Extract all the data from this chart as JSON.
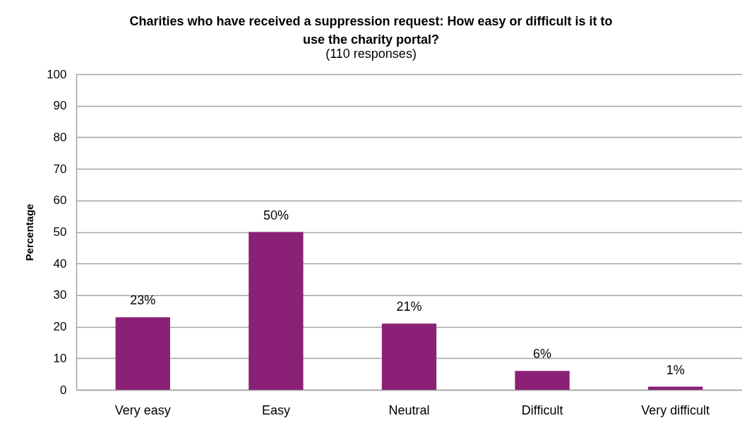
{
  "chart_data": {
    "type": "bar",
    "title": "Charities who have received a suppression request: How easy or difficult is it to use the charity portal?",
    "subtitle": "(110 responses)",
    "ylabel": "Percentage",
    "categories": [
      "Very easy",
      "Easy",
      "Neutral",
      "Difficult",
      "Very difficult"
    ],
    "values": [
      23,
      50,
      21,
      6,
      1
    ],
    "value_labels": [
      "23%",
      "50%",
      "21%",
      "6%",
      "1%"
    ],
    "color": "#8a2176",
    "ylim": [
      0,
      100
    ],
    "yticks": [
      0,
      10,
      20,
      30,
      40,
      50,
      60,
      70,
      80,
      90,
      100
    ],
    "grid": "y"
  }
}
